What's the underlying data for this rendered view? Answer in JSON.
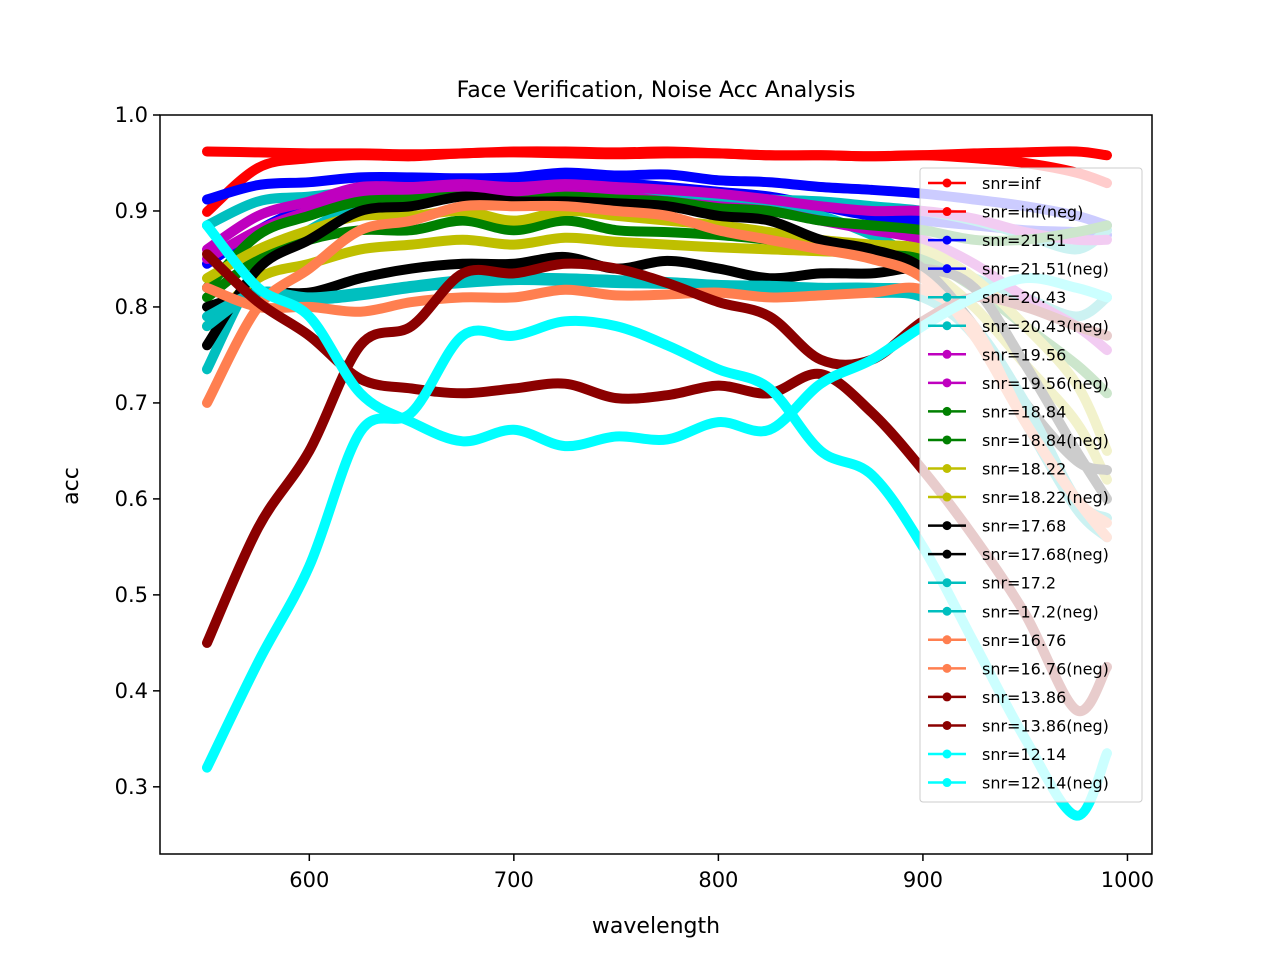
{
  "chart_data": {
    "type": "line",
    "title": "Face Verification, Noise Acc Analysis",
    "xlabel": "wavelength",
    "ylabel": "acc",
    "xlim": [
      527,
      1012
    ],
    "ylim": [
      0.23,
      1.0
    ],
    "xticks": [
      600,
      700,
      800,
      900,
      1000
    ],
    "yticks": [
      0.3,
      0.4,
      0.5,
      0.6,
      0.7,
      0.8,
      0.9,
      1.0
    ],
    "xtick_labels": [
      "600",
      "700",
      "800",
      "900",
      "1000"
    ],
    "ytick_labels": [
      "0.3",
      "0.4",
      "0.5",
      "0.6",
      "0.7",
      "0.8",
      "0.9",
      "1.0"
    ],
    "grid": false,
    "legend_position": "right",
    "x": [
      550,
      575,
      600,
      625,
      650,
      675,
      700,
      725,
      750,
      775,
      800,
      825,
      850,
      875,
      900,
      925,
      950,
      975,
      990
    ],
    "series": [
      {
        "name": "snr=inf",
        "color": "#ff0000",
        "values": [
          0.962,
          0.961,
          0.96,
          0.96,
          0.959,
          0.96,
          0.962,
          0.962,
          0.961,
          0.962,
          0.96,
          0.958,
          0.958,
          0.957,
          0.958,
          0.96,
          0.961,
          0.962,
          0.958
        ]
      },
      {
        "name": "snr=inf(neg)",
        "color": "#ff0000",
        "values": [
          0.899,
          0.945,
          0.955,
          0.958,
          0.957,
          0.96,
          0.961,
          0.96,
          0.959,
          0.96,
          0.96,
          0.958,
          0.958,
          0.957,
          0.958,
          0.955,
          0.95,
          0.94,
          0.929
        ]
      },
      {
        "name": "snr=21.51",
        "color": "#0000ff",
        "values": [
          0.912,
          0.927,
          0.93,
          0.935,
          0.935,
          0.934,
          0.935,
          0.94,
          0.937,
          0.938,
          0.932,
          0.93,
          0.925,
          0.922,
          0.918,
          0.912,
          0.905,
          0.895,
          0.885
        ]
      },
      {
        "name": "snr=21.51(neg)",
        "color": "#0000ff",
        "values": [
          0.845,
          0.88,
          0.905,
          0.92,
          0.922,
          0.925,
          0.928,
          0.93,
          0.929,
          0.925,
          0.92,
          0.915,
          0.905,
          0.895,
          0.89,
          0.885,
          0.88,
          0.878,
          0.875
        ]
      },
      {
        "name": "snr=20.43",
        "color": "#00bfbf",
        "values": [
          0.885,
          0.91,
          0.915,
          0.92,
          0.918,
          0.925,
          0.922,
          0.92,
          0.918,
          0.92,
          0.915,
          0.912,
          0.91,
          0.905,
          0.9,
          0.89,
          0.875,
          0.86,
          0.88
        ]
      },
      {
        "name": "snr=20.43(neg)",
        "color": "#00bfbf",
        "values": [
          0.735,
          0.84,
          0.88,
          0.905,
          0.91,
          0.92,
          0.92,
          0.918,
          0.918,
          0.915,
          0.91,
          0.905,
          0.895,
          0.875,
          0.85,
          0.83,
          0.81,
          0.79,
          0.81
        ]
      },
      {
        "name": "snr=19.56",
        "color": "#bf00bf",
        "values": [
          0.86,
          0.895,
          0.91,
          0.925,
          0.925,
          0.928,
          0.925,
          0.928,
          0.925,
          0.922,
          0.918,
          0.912,
          0.905,
          0.9,
          0.9,
          0.892,
          0.878,
          0.87,
          0.87
        ]
      },
      {
        "name": "snr=19.56(neg)",
        "color": "#bf00bf",
        "values": [
          0.85,
          0.88,
          0.9,
          0.915,
          0.915,
          0.92,
          0.92,
          0.918,
          0.916,
          0.91,
          0.905,
          0.9,
          0.89,
          0.88,
          0.87,
          0.845,
          0.81,
          0.78,
          0.755
        ]
      },
      {
        "name": "snr=18.84",
        "color": "#008000",
        "values": [
          0.82,
          0.875,
          0.895,
          0.91,
          0.912,
          0.915,
          0.91,
          0.915,
          0.912,
          0.91,
          0.903,
          0.9,
          0.89,
          0.885,
          0.88,
          0.87,
          0.87,
          0.878,
          0.885
        ]
      },
      {
        "name": "snr=18.84(neg)",
        "color": "#008000",
        "values": [
          0.81,
          0.85,
          0.87,
          0.88,
          0.88,
          0.89,
          0.88,
          0.89,
          0.88,
          0.878,
          0.875,
          0.87,
          0.865,
          0.86,
          0.85,
          0.82,
          0.78,
          0.74,
          0.71
        ]
      },
      {
        "name": "snr=18.22",
        "color": "#bfbf00",
        "values": [
          0.83,
          0.86,
          0.88,
          0.895,
          0.895,
          0.9,
          0.89,
          0.9,
          0.895,
          0.89,
          0.885,
          0.878,
          0.87,
          0.865,
          0.86,
          0.83,
          0.78,
          0.72,
          0.65
        ]
      },
      {
        "name": "snr=18.22(neg)",
        "color": "#bfbf00",
        "values": [
          0.78,
          0.83,
          0.845,
          0.86,
          0.865,
          0.87,
          0.865,
          0.872,
          0.868,
          0.865,
          0.862,
          0.86,
          0.858,
          0.855,
          0.84,
          0.8,
          0.74,
          0.68,
          0.62
        ]
      },
      {
        "name": "snr=17.68",
        "color": "#000000",
        "values": [
          0.76,
          0.84,
          0.87,
          0.9,
          0.905,
          0.915,
          0.91,
          0.91,
          0.908,
          0.905,
          0.895,
          0.89,
          0.87,
          0.86,
          0.84,
          0.78,
          0.7,
          0.64,
          0.63
        ]
      },
      {
        "name": "snr=17.68(neg)",
        "color": "#000000",
        "values": [
          0.8,
          0.815,
          0.815,
          0.83,
          0.84,
          0.845,
          0.845,
          0.852,
          0.84,
          0.848,
          0.84,
          0.83,
          0.835,
          0.835,
          0.84,
          0.82,
          0.74,
          0.65,
          0.6
        ]
      },
      {
        "name": "snr=17.2",
        "color": "#00bfbf",
        "values": [
          0.79,
          0.815,
          0.81,
          0.815,
          0.822,
          0.828,
          0.83,
          0.83,
          0.828,
          0.826,
          0.823,
          0.822,
          0.82,
          0.82,
          0.815,
          0.78,
          0.7,
          0.6,
          0.58
        ]
      },
      {
        "name": "snr=17.2(neg)",
        "color": "#00bfbf",
        "values": [
          0.78,
          0.815,
          0.808,
          0.812,
          0.82,
          0.825,
          0.828,
          0.827,
          0.825,
          0.824,
          0.822,
          0.82,
          0.818,
          0.815,
          0.81,
          0.77,
          0.68,
          0.59,
          0.56
        ]
      },
      {
        "name": "snr=16.76",
        "color": "#ff7f50",
        "values": [
          0.82,
          0.8,
          0.8,
          0.795,
          0.805,
          0.81,
          0.81,
          0.818,
          0.812,
          0.813,
          0.815,
          0.81,
          0.812,
          0.815,
          0.818,
          0.78,
          0.68,
          0.6,
          0.575
        ]
      },
      {
        "name": "snr=16.76(neg)",
        "color": "#ff7f50",
        "values": [
          0.7,
          0.8,
          0.84,
          0.88,
          0.89,
          0.905,
          0.905,
          0.905,
          0.9,
          0.895,
          0.88,
          0.87,
          0.86,
          0.85,
          0.83,
          0.77,
          0.68,
          0.6,
          0.56
        ]
      },
      {
        "name": "snr=13.86",
        "color": "#8b0000",
        "values": [
          0.45,
          0.57,
          0.65,
          0.76,
          0.78,
          0.835,
          0.835,
          0.845,
          0.84,
          0.825,
          0.805,
          0.79,
          0.745,
          0.745,
          0.785,
          0.81,
          0.8,
          0.78,
          0.77
        ]
      },
      {
        "name": "snr=13.86(neg)",
        "color": "#8b0000",
        "values": [
          0.855,
          0.805,
          0.77,
          0.725,
          0.715,
          0.71,
          0.715,
          0.72,
          0.705,
          0.708,
          0.718,
          0.71,
          0.73,
          0.69,
          0.63,
          0.56,
          0.48,
          0.38,
          0.425
        ]
      },
      {
        "name": "snr=12.14",
        "color": "#00ffff",
        "values": [
          0.32,
          0.43,
          0.53,
          0.67,
          0.69,
          0.77,
          0.77,
          0.785,
          0.78,
          0.76,
          0.735,
          0.715,
          0.65,
          0.625,
          0.55,
          0.45,
          0.35,
          0.27,
          0.335
        ]
      },
      {
        "name": "snr=12.14(neg)",
        "color": "#00ffff",
        "values": [
          0.885,
          0.82,
          0.79,
          0.71,
          0.68,
          0.66,
          0.672,
          0.655,
          0.665,
          0.662,
          0.68,
          0.672,
          0.72,
          0.745,
          0.78,
          0.81,
          0.83,
          0.82,
          0.81
        ]
      }
    ]
  }
}
